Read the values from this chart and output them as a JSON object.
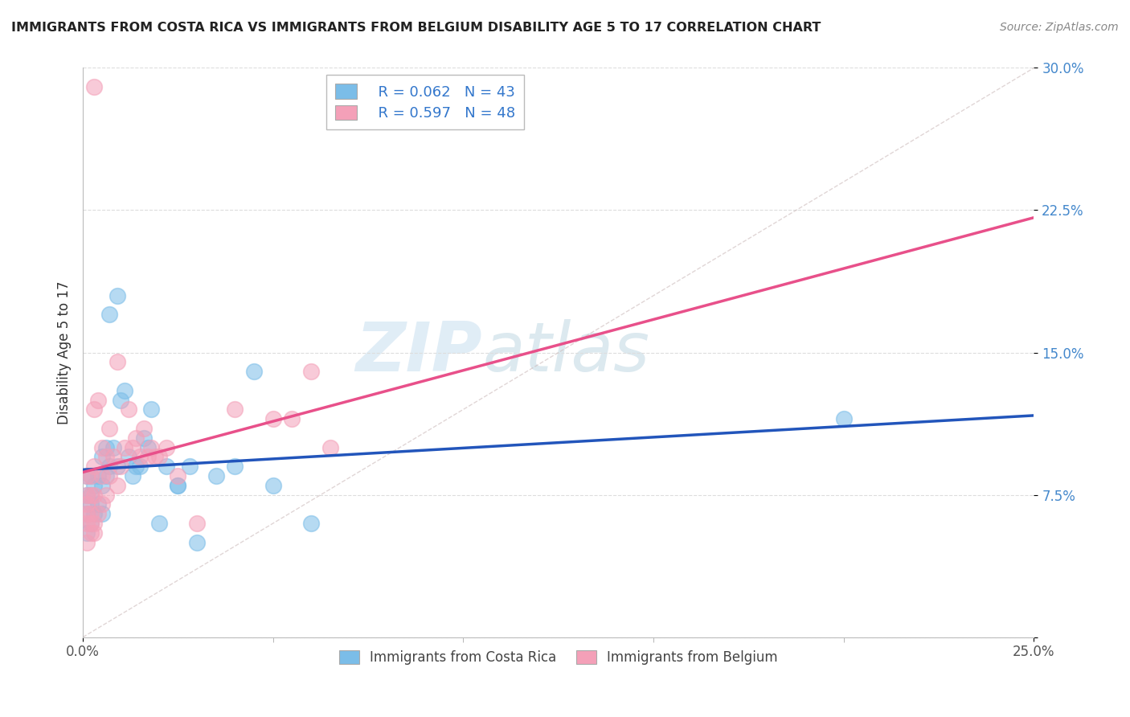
{
  "title": "IMMIGRANTS FROM COSTA RICA VS IMMIGRANTS FROM BELGIUM DISABILITY AGE 5 TO 17 CORRELATION CHART",
  "source": "Source: ZipAtlas.com",
  "ylabel": "Disability Age 5 to 17",
  "xlim": [
    0.0,
    0.25
  ],
  "ylim": [
    0.0,
    0.3
  ],
  "xticks": [
    0.0,
    0.25
  ],
  "yticks": [
    0.075,
    0.15,
    0.225,
    0.3
  ],
  "legend_r_blue": "R = 0.062",
  "legend_n_blue": "N = 43",
  "legend_r_pink": "R = 0.597",
  "legend_n_pink": "N = 48",
  "legend_label_blue": "Immigrants from Costa Rica",
  "legend_label_pink": "Immigrants from Belgium",
  "color_blue": "#7bbde8",
  "color_pink": "#f4a0b8",
  "line_color_blue": "#2255bb",
  "line_color_pink": "#e8508a",
  "watermark_zip": "ZIP",
  "watermark_atlas": "atlas",
  "background": "#ffffff",
  "costa_rica_x": [
    0.001,
    0.001,
    0.001,
    0.001,
    0.002,
    0.002,
    0.002,
    0.002,
    0.003,
    0.003,
    0.004,
    0.004,
    0.005,
    0.005,
    0.005,
    0.006,
    0.006,
    0.007,
    0.007,
    0.008,
    0.009,
    0.009,
    0.01,
    0.011,
    0.012,
    0.013,
    0.014,
    0.015,
    0.016,
    0.017,
    0.018,
    0.02,
    0.022,
    0.025,
    0.028,
    0.03,
    0.035,
    0.04,
    0.045,
    0.05,
    0.06,
    0.2,
    0.025
  ],
  "costa_rica_y": [
    0.055,
    0.065,
    0.075,
    0.085,
    0.06,
    0.07,
    0.075,
    0.085,
    0.065,
    0.08,
    0.07,
    0.085,
    0.065,
    0.08,
    0.095,
    0.085,
    0.1,
    0.09,
    0.17,
    0.1,
    0.09,
    0.18,
    0.125,
    0.13,
    0.095,
    0.085,
    0.09,
    0.09,
    0.105,
    0.1,
    0.12,
    0.06,
    0.09,
    0.08,
    0.09,
    0.05,
    0.085,
    0.09,
    0.14,
    0.08,
    0.06,
    0.115,
    0.08
  ],
  "belgium_x": [
    0.001,
    0.001,
    0.001,
    0.001,
    0.001,
    0.001,
    0.002,
    0.002,
    0.002,
    0.002,
    0.002,
    0.003,
    0.003,
    0.003,
    0.003,
    0.004,
    0.004,
    0.005,
    0.005,
    0.005,
    0.006,
    0.006,
    0.007,
    0.007,
    0.008,
    0.009,
    0.009,
    0.01,
    0.011,
    0.012,
    0.013,
    0.014,
    0.015,
    0.016,
    0.017,
    0.018,
    0.019,
    0.02,
    0.022,
    0.025,
    0.03,
    0.04,
    0.05,
    0.055,
    0.06,
    0.065,
    0.003,
    0.003
  ],
  "belgium_y": [
    0.05,
    0.06,
    0.065,
    0.07,
    0.075,
    0.085,
    0.055,
    0.06,
    0.065,
    0.075,
    0.085,
    0.055,
    0.06,
    0.075,
    0.09,
    0.065,
    0.125,
    0.07,
    0.085,
    0.1,
    0.075,
    0.095,
    0.085,
    0.11,
    0.095,
    0.08,
    0.145,
    0.09,
    0.1,
    0.12,
    0.1,
    0.105,
    0.095,
    0.11,
    0.095,
    0.1,
    0.095,
    0.095,
    0.1,
    0.085,
    0.06,
    0.12,
    0.115,
    0.115,
    0.14,
    0.1,
    0.29,
    0.12
  ],
  "grid_color": "#dddddd",
  "tick_color_x": "#555555",
  "tick_color_y": "#4488cc"
}
